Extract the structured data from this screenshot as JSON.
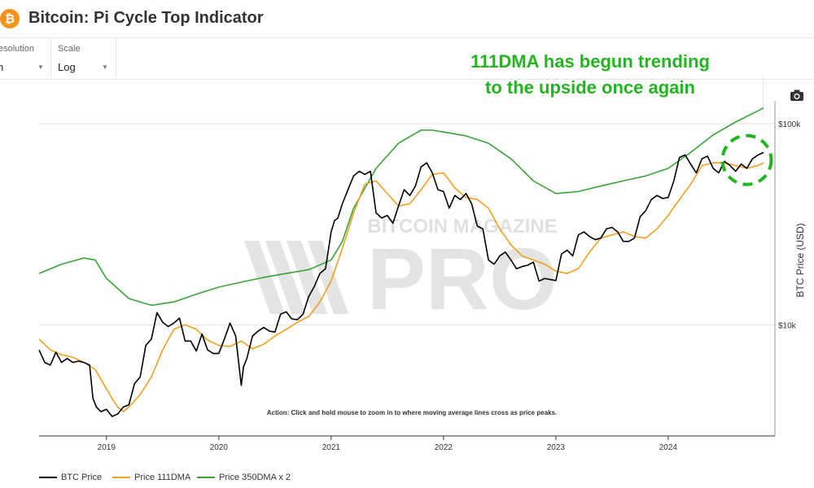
{
  "header": {
    "logo_symbol": "₿",
    "title": "Bitcoin: Pi Cycle Top Indicator"
  },
  "controls": {
    "resolution": {
      "label": "Resolution",
      "value": "Month",
      "visible_label": "esolution",
      "visible_value": "n"
    },
    "scale": {
      "label": "Scale",
      "value": "Log"
    }
  },
  "toolbar": {
    "camera_icon": "camera-icon"
  },
  "annotation": {
    "line1": "111DMA has begun trending",
    "line2": "to the upside once again",
    "color": "#22b51f"
  },
  "watermark": {
    "top": "BITCOIN MAGAZINE",
    "bottom": "PRO"
  },
  "colors": {
    "btc_price": "#000000",
    "dma111": "#f0a020",
    "dma350x2": "#3aa33a",
    "highlight": "#22b51f"
  },
  "chart_data": {
    "type": "line",
    "title": "Bitcoin: Pi Cycle Top Indicator",
    "ylabel": "BTC Price (USD)",
    "xlabel": "",
    "yscale": "log",
    "ylim": [
      2800,
      130000
    ],
    "xlim": [
      2018.4,
      2024.95
    ],
    "x_ticks": [
      2019,
      2020,
      2021,
      2022,
      2023,
      2024
    ],
    "x_tick_labels": [
      "2019",
      "2020",
      "2021",
      "2022",
      "2023",
      "2024"
    ],
    "y_ticks": [
      10000,
      100000
    ],
    "y_tick_labels": [
      "$10k",
      "$100k"
    ],
    "action_note": "Action: Click and hold mouse to zoom in to where moving average lines cross as price peaks.",
    "highlight_region": {
      "x": 2024.7,
      "y": 66000,
      "label": "111DMA has begun trending to the upside once again"
    },
    "legend": [
      "BTC Price",
      "Price 111DMA",
      "Price 350DMA x 2"
    ],
    "series": [
      {
        "name": "BTC Price",
        "x": [
          2018.4,
          2018.45,
          2018.5,
          2018.55,
          2018.6,
          2018.65,
          2018.7,
          2018.75,
          2018.8,
          2018.85,
          2018.88,
          2018.91,
          2018.95,
          2019.0,
          2019.05,
          2019.1,
          2019.15,
          2019.2,
          2019.25,
          2019.3,
          2019.35,
          2019.4,
          2019.45,
          2019.5,
          2019.55,
          2019.6,
          2019.65,
          2019.7,
          2019.75,
          2019.8,
          2019.85,
          2019.9,
          2019.95,
          2020.0,
          2020.05,
          2020.1,
          2020.15,
          2020.2,
          2020.22,
          2020.25,
          2020.3,
          2020.35,
          2020.4,
          2020.45,
          2020.5,
          2020.55,
          2020.6,
          2020.65,
          2020.7,
          2020.75,
          2020.8,
          2020.85,
          2020.9,
          2020.95,
          2021.0,
          2021.03,
          2021.06,
          2021.1,
          2021.15,
          2021.2,
          2021.25,
          2021.3,
          2021.35,
          2021.4,
          2021.45,
          2021.5,
          2021.55,
          2021.6,
          2021.65,
          2021.7,
          2021.75,
          2021.8,
          2021.85,
          2021.9,
          2021.95,
          2022.0,
          2022.05,
          2022.1,
          2022.15,
          2022.2,
          2022.25,
          2022.3,
          2022.35,
          2022.4,
          2022.45,
          2022.5,
          2022.55,
          2022.6,
          2022.65,
          2022.7,
          2022.75,
          2022.8,
          2022.85,
          2022.9,
          2022.95,
          2023.0,
          2023.05,
          2023.1,
          2023.15,
          2023.2,
          2023.25,
          2023.3,
          2023.35,
          2023.4,
          2023.45,
          2023.5,
          2023.55,
          2023.6,
          2023.65,
          2023.7,
          2023.75,
          2023.8,
          2023.85,
          2023.9,
          2023.95,
          2024.0,
          2024.05,
          2024.1,
          2024.15,
          2024.2,
          2024.25,
          2024.3,
          2024.35,
          2024.4,
          2024.45,
          2024.5,
          2024.55,
          2024.6,
          2024.65,
          2024.7,
          2024.75,
          2024.8,
          2024.85
        ],
        "values": [
          7500,
          6500,
          6300,
          7300,
          6500,
          6800,
          6500,
          6600,
          6500,
          6300,
          4300,
          3900,
          3700,
          3800,
          3500,
          3600,
          3900,
          4000,
          5100,
          5500,
          7900,
          8500,
          11500,
          10300,
          9800,
          10200,
          10800,
          8300,
          8300,
          7400,
          9000,
          7500,
          7200,
          7200,
          8500,
          10200,
          8800,
          5000,
          6200,
          6800,
          8800,
          9300,
          9700,
          9300,
          9200,
          11300,
          11600,
          10700,
          10600,
          11300,
          13800,
          15500,
          18000,
          19000,
          29000,
          33000,
          34000,
          40000,
          47000,
          55000,
          58000,
          56000,
          58000,
          36000,
          34000,
          35000,
          32000,
          39000,
          47000,
          44000,
          49000,
          61000,
          64000,
          57000,
          47000,
          46000,
          38000,
          44000,
          42000,
          45000,
          40000,
          31000,
          30000,
          21000,
          20000,
          22000,
          23000,
          21000,
          19000,
          19500,
          19800,
          20500,
          16500,
          17000,
          16800,
          16600,
          22500,
          23500,
          22000,
          28000,
          29000,
          27500,
          26500,
          27000,
          30000,
          30500,
          29000,
          26000,
          26000,
          27000,
          34500,
          37000,
          42000,
          44000,
          42500,
          43000,
          52000,
          68000,
          70000,
          63000,
          57000,
          67000,
          69000,
          60000,
          57000,
          65000,
          62000,
          58000,
          63000,
          60000,
          67000,
          70000,
          72000
        ]
      },
      {
        "name": "Price 111DMA",
        "x": [
          2018.4,
          2018.5,
          2018.6,
          2018.7,
          2018.8,
          2018.9,
          2019.0,
          2019.05,
          2019.1,
          2019.15,
          2019.2,
          2019.3,
          2019.4,
          2019.5,
          2019.6,
          2019.7,
          2019.8,
          2019.9,
          2020.0,
          2020.1,
          2020.2,
          2020.3,
          2020.4,
          2020.5,
          2020.6,
          2020.7,
          2020.8,
          2020.9,
          2021.0,
          2021.1,
          2021.2,
          2021.3,
          2021.4,
          2021.5,
          2021.6,
          2021.7,
          2021.8,
          2021.9,
          2022.0,
          2022.1,
          2022.2,
          2022.3,
          2022.4,
          2022.5,
          2022.6,
          2022.7,
          2022.8,
          2022.9,
          2023.0,
          2023.1,
          2023.2,
          2023.3,
          2023.4,
          2023.5,
          2023.6,
          2023.7,
          2023.8,
          2023.9,
          2024.0,
          2024.1,
          2024.2,
          2024.3,
          2024.4,
          2024.5,
          2024.6,
          2024.7,
          2024.8,
          2024.85
        ],
        "values": [
          8500,
          7500,
          7100,
          6900,
          6500,
          6000,
          4800,
          4300,
          3900,
          3700,
          3900,
          4500,
          5500,
          7500,
          9500,
          10000,
          9500,
          8400,
          7900,
          7800,
          8300,
          7600,
          8000,
          8800,
          9500,
          10300,
          11000,
          13000,
          16500,
          24000,
          36000,
          50000,
          52000,
          45000,
          39000,
          40000,
          47000,
          56000,
          57000,
          48000,
          43000,
          42000,
          38000,
          30000,
          25000,
          22000,
          21000,
          20000,
          18500,
          18000,
          19000,
          23000,
          27000,
          28000,
          29000,
          27500,
          27000,
          30000,
          35000,
          42000,
          50000,
          62000,
          64000,
          64000,
          62000,
          60000,
          62000,
          64000
        ]
      },
      {
        "name": "Price 350DMA x 2",
        "x": [
          2018.4,
          2018.6,
          2018.8,
          2018.9,
          2019.0,
          2019.2,
          2019.4,
          2019.6,
          2019.8,
          2020.0,
          2020.2,
          2020.4,
          2020.6,
          2020.8,
          2021.0,
          2021.1,
          2021.2,
          2021.4,
          2021.6,
          2021.8,
          2021.9,
          2022.0,
          2022.2,
          2022.4,
          2022.6,
          2022.8,
          2023.0,
          2023.2,
          2023.4,
          2023.6,
          2023.8,
          2024.0,
          2024.2,
          2024.4,
          2024.6,
          2024.8,
          2024.85
        ],
        "values": [
          18000,
          20000,
          21500,
          21000,
          17000,
          13500,
          12500,
          13000,
          14200,
          15400,
          16300,
          17200,
          18000,
          18800,
          21000,
          26000,
          38000,
          60000,
          80000,
          93000,
          93000,
          91000,
          87000,
          80000,
          67000,
          52000,
          45000,
          46000,
          49000,
          52000,
          55000,
          60000,
          72000,
          88000,
          102000,
          116000,
          120000
        ]
      }
    ]
  },
  "legend": {
    "btc_price": "BTC Price",
    "dma111": "Price 111DMA",
    "dma350x2": "Price 350DMA x 2"
  }
}
